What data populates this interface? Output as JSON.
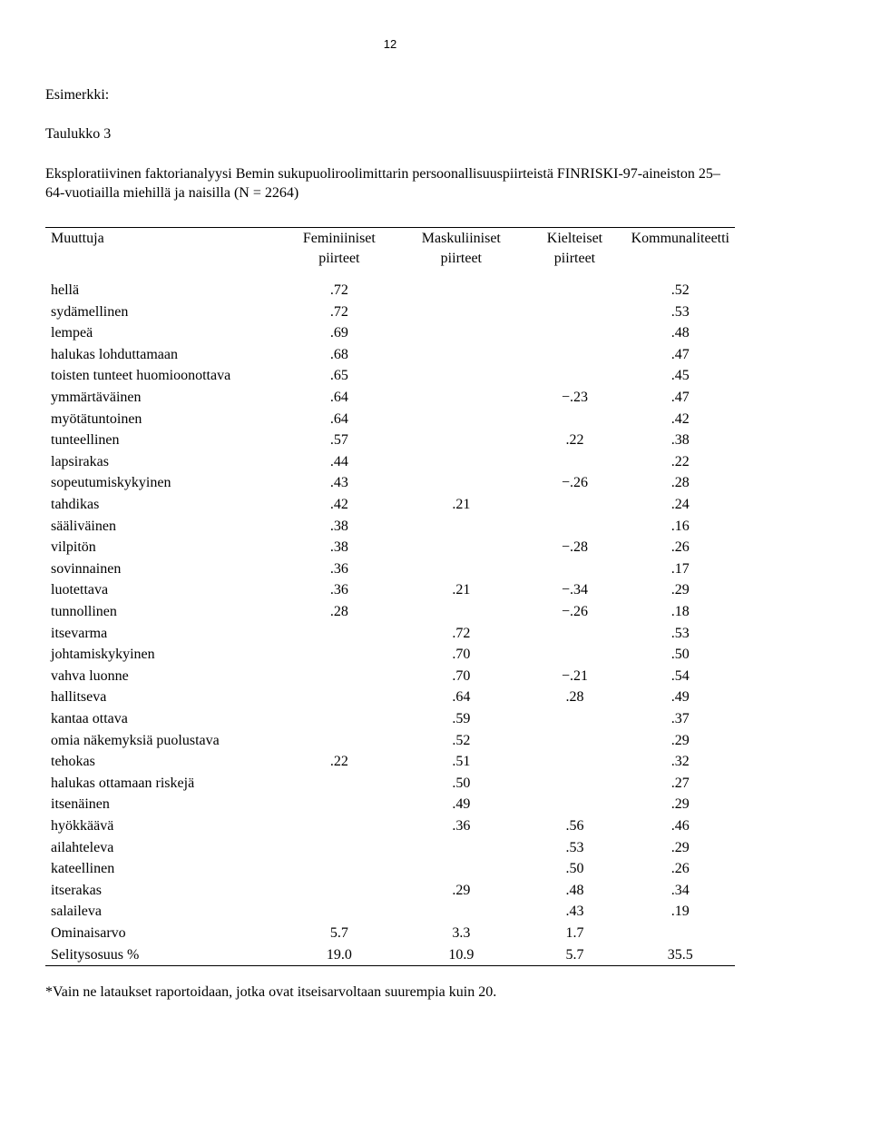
{
  "page_number": "12",
  "example_label": "Esimerkki:",
  "table_label": "Taulukko 3",
  "caption": "Eksploratiivinen faktorianalyysi Bemin sukupuoliroolimittarin persoonallisuuspiirteistä FINRISKI-97-aineiston 25–64-vuotiailla miehillä ja naisilla (N = 2264)",
  "columns": {
    "var": "Muuttuja",
    "fem": "Feminiiniset piirteet",
    "masc": "Maskuliiniset piirteet",
    "neg": "Kielteiset piirteet",
    "comm": "Kommunaliteetti"
  },
  "rows": [
    {
      "var": "hellä",
      "fem": ".72",
      "masc": "",
      "neg": "",
      "comm": ".52"
    },
    {
      "var": "sydämellinen",
      "fem": ".72",
      "masc": "",
      "neg": "",
      "comm": ".53"
    },
    {
      "var": "lempeä",
      "fem": ".69",
      "masc": "",
      "neg": "",
      "comm": ".48"
    },
    {
      "var": "halukas lohduttamaan",
      "fem": ".68",
      "masc": "",
      "neg": "",
      "comm": ".47"
    },
    {
      "var": "toisten tunteet huomioonottava",
      "fem": ".65",
      "masc": "",
      "neg": "",
      "comm": ".45"
    },
    {
      "var": "ymmärtäväinen",
      "fem": ".64",
      "masc": "",
      "neg": "−.23",
      "comm": ".47"
    },
    {
      "var": "myötätuntoinen",
      "fem": ".64",
      "masc": "",
      "neg": "",
      "comm": ".42"
    },
    {
      "var": "tunteellinen",
      "fem": ".57",
      "masc": "",
      "neg": ".22",
      "comm": ".38"
    },
    {
      "var": "lapsirakas",
      "fem": ".44",
      "masc": "",
      "neg": "",
      "comm": ".22"
    },
    {
      "var": "sopeutumiskykyinen",
      "fem": ".43",
      "masc": "",
      "neg": "−.26",
      "comm": ".28"
    },
    {
      "var": "tahdikas",
      "fem": ".42",
      "masc": ".21",
      "neg": "",
      "comm": ".24"
    },
    {
      "var": "sääliväinen",
      "fem": ".38",
      "masc": "",
      "neg": "",
      "comm": ".16"
    },
    {
      "var": "vilpitön",
      "fem": ".38",
      "masc": "",
      "neg": "−.28",
      "comm": ".26"
    },
    {
      "var": "sovinnainen",
      "fem": ".36",
      "masc": "",
      "neg": "",
      "comm": ".17"
    },
    {
      "var": "luotettava",
      "fem": ".36",
      "masc": ".21",
      "neg": "−.34",
      "comm": ".29"
    },
    {
      "var": "tunnollinen",
      "fem": ".28",
      "masc": "",
      "neg": "−.26",
      "comm": ".18"
    },
    {
      "var": "itsevarma",
      "fem": "",
      "masc": ".72",
      "neg": "",
      "comm": ".53"
    },
    {
      "var": "johtamiskykyinen",
      "fem": "",
      "masc": ".70",
      "neg": "",
      "comm": ".50"
    },
    {
      "var": "vahva luonne",
      "fem": "",
      "masc": ".70",
      "neg": "−.21",
      "comm": ".54"
    },
    {
      "var": "hallitseva",
      "fem": "",
      "masc": ".64",
      "neg": ".28",
      "comm": ".49"
    },
    {
      "var": "kantaa ottava",
      "fem": "",
      "masc": ".59",
      "neg": "",
      "comm": ".37"
    },
    {
      "var": "omia näkemyksiä puolustava",
      "fem": "",
      "masc": ".52",
      "neg": "",
      "comm": ".29"
    },
    {
      "var": "tehokas",
      "fem": ".22",
      "masc": ".51",
      "neg": "",
      "comm": ".32"
    },
    {
      "var": "halukas ottamaan riskejä",
      "fem": "",
      "masc": ".50",
      "neg": "",
      "comm": ".27"
    },
    {
      "var": "itsenäinen",
      "fem": "",
      "masc": ".49",
      "neg": "",
      "comm": ".29"
    },
    {
      "var": "hyökkäävä",
      "fem": "",
      "masc": ".36",
      "neg": ".56",
      "comm": ".46"
    },
    {
      "var": "ailahteleva",
      "fem": "",
      "masc": "",
      "neg": ".53",
      "comm": ".29"
    },
    {
      "var": "kateellinen",
      "fem": "",
      "masc": "",
      "neg": ".50",
      "comm": ".26"
    },
    {
      "var": "itserakas",
      "fem": "",
      "masc": ".29",
      "neg": ".48",
      "comm": ".34"
    },
    {
      "var": "salaileva",
      "fem": "",
      "masc": "",
      "neg": ".43",
      "comm": ".19"
    },
    {
      "var": "Ominaisarvo",
      "fem": "5.7",
      "masc": "3.3",
      "neg": "1.7",
      "comm": ""
    },
    {
      "var": "Selitysosuus %",
      "fem": "19.0",
      "masc": "10.9",
      "neg": "5.7",
      "comm": "35.5"
    }
  ],
  "footnote": "*Vain ne lataukset raportoidaan, jotka ovat itseisarvoltaan suurempia kuin 20."
}
